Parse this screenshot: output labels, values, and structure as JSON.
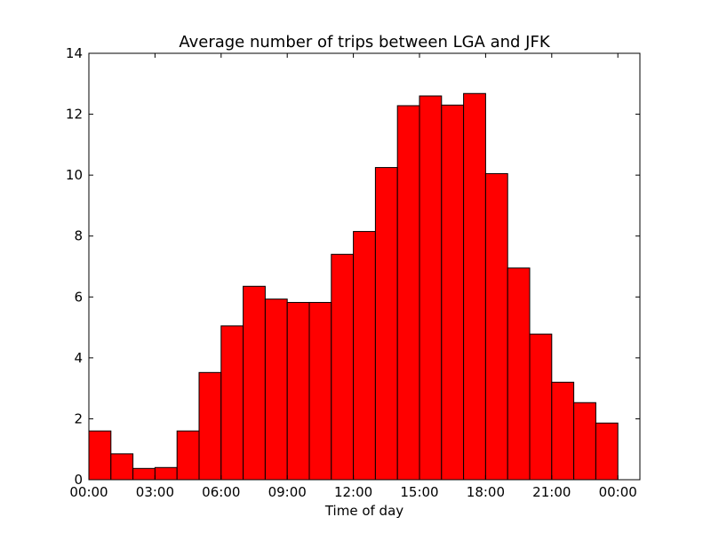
{
  "chart_data": {
    "type": "bar",
    "title": "Average number of trips between LGA and JFK",
    "xlabel": "Time of day",
    "ylabel": "",
    "categories": [
      "00:00",
      "01:00",
      "02:00",
      "03:00",
      "04:00",
      "05:00",
      "06:00",
      "07:00",
      "08:00",
      "09:00",
      "10:00",
      "11:00",
      "12:00",
      "13:00",
      "14:00",
      "15:00",
      "16:00",
      "17:00",
      "18:00",
      "19:00",
      "20:00",
      "21:00",
      "22:00",
      "23:00"
    ],
    "values": [
      1.6,
      0.85,
      0.37,
      0.4,
      1.6,
      3.52,
      5.05,
      6.35,
      5.93,
      5.82,
      5.82,
      7.4,
      8.15,
      10.25,
      12.28,
      12.6,
      12.3,
      12.68,
      10.05,
      6.95,
      4.78,
      3.2,
      2.53,
      1.86
    ],
    "xlim": [
      0,
      25
    ],
    "ylim": [
      0,
      14
    ],
    "xticks": [
      {
        "value": 0,
        "label": "00:00"
      },
      {
        "value": 3,
        "label": "03:00"
      },
      {
        "value": 6,
        "label": "06:00"
      },
      {
        "value": 9,
        "label": "09:00"
      },
      {
        "value": 12,
        "label": "12:00"
      },
      {
        "value": 15,
        "label": "15:00"
      },
      {
        "value": 18,
        "label": "18:00"
      },
      {
        "value": 21,
        "label": "21:00"
      },
      {
        "value": 24,
        "label": "00:00"
      }
    ],
    "yticks": [
      0,
      2,
      4,
      6,
      8,
      10,
      12,
      14
    ],
    "bar_color": "#ff0000",
    "edge_color": "#000000",
    "grid": false,
    "legend": "none"
  }
}
